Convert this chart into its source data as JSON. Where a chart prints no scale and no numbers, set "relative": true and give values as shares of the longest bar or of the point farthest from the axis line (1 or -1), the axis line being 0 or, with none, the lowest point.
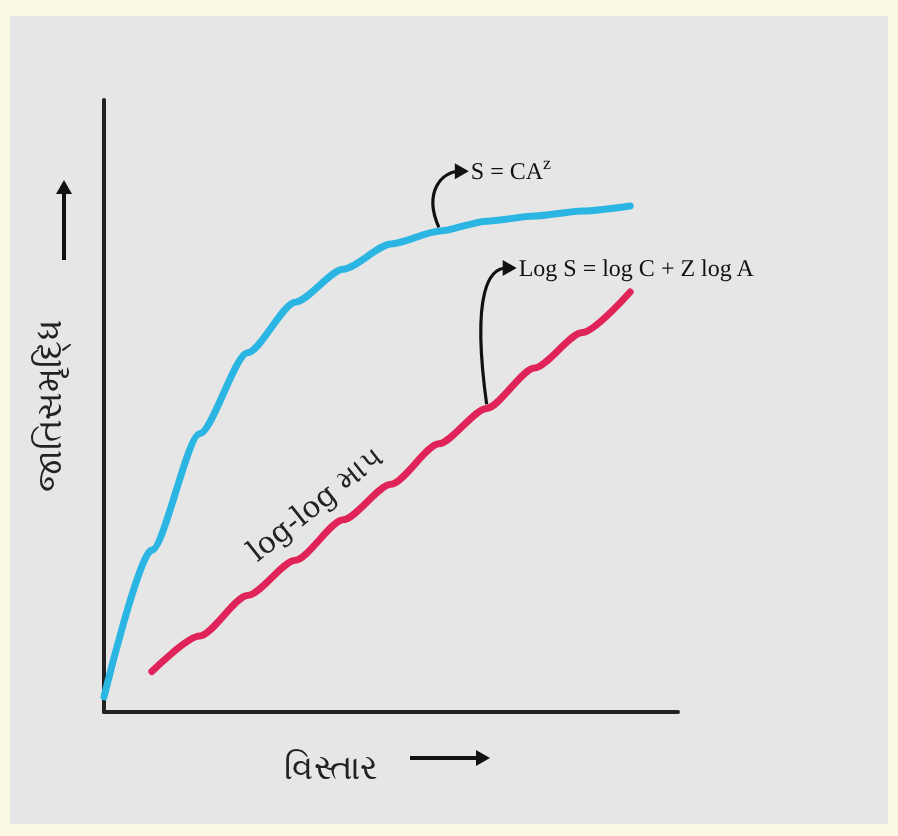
{
  "chart_data": {
    "type": "line",
    "relative": true,
    "xlabel": "વિસ્તાર",
    "ylabel": "જાતિસમૃદ્ધિ",
    "categories": [
      null,
      null,
      null,
      null,
      null,
      null,
      null,
      null,
      null,
      null,
      null,
      null,
      null
    ],
    "series": [
      {
        "color": "#2bb5e3",
        "values": [
          0.03,
          0.32,
          0.55,
          0.71,
          0.81,
          0.875,
          0.925,
          0.95,
          0.97,
          0.98,
          0.99,
          1.0,
          null
        ]
      },
      {
        "color": "#e0245a",
        "values": [
          null,
          0.08,
          0.15,
          0.23,
          0.3,
          0.38,
          0.45,
          0.53,
          0.6,
          0.68,
          0.75,
          0.83,
          null
        ]
      }
    ],
    "annotations": [
      "S = CA$^{z}$",
      "Log S = log C + Z log A",
      "log-log માપ"
    ]
  }
}
